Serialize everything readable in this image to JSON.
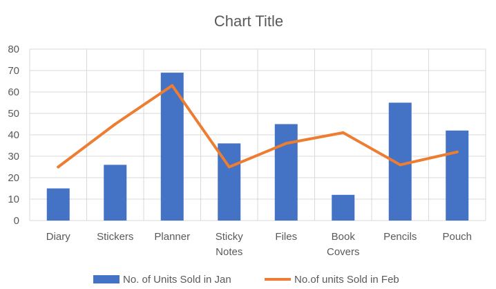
{
  "chart_data": {
    "type": "bar",
    "title": "Chart Title",
    "categories": [
      "Diary",
      "Stickers",
      "Planner",
      "Sticky Notes",
      "Files",
      "Book Covers",
      "Pencils",
      "Pouch"
    ],
    "category_labels": [
      [
        "Diary"
      ],
      [
        "Stickers"
      ],
      [
        "Planner"
      ],
      [
        "Sticky",
        "Notes"
      ],
      [
        "Files"
      ],
      [
        "Book",
        "Covers"
      ],
      [
        "Pencils"
      ],
      [
        "Pouch"
      ]
    ],
    "series": [
      {
        "name": "No. of Units Sold in Jan",
        "type": "bar",
        "color": "#4472C4",
        "values": [
          15,
          26,
          69,
          36,
          45,
          12,
          55,
          42
        ]
      },
      {
        "name": "No.of units Sold in Feb",
        "type": "line",
        "color": "#ED7D31",
        "values": [
          25,
          45,
          63,
          25,
          36,
          41,
          26,
          32
        ]
      }
    ],
    "ylim": [
      0,
      80
    ],
    "yticks": [
      "0",
      "10",
      "20",
      "30",
      "40",
      "50",
      "60",
      "70",
      "80"
    ],
    "grid": true,
    "legend": "bottom"
  }
}
